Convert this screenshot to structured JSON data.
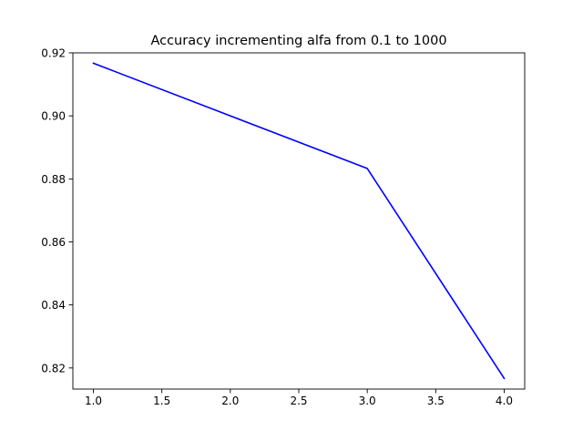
{
  "chart_data": {
    "type": "line",
    "title": "Accuracy incrementing alfa from 0.1 to 1000",
    "xlabel": "",
    "ylabel": "",
    "x": [
      1.0,
      3.0,
      4.0
    ],
    "series": [
      {
        "values": [
          0.9167,
          0.8833,
          0.8167
        ],
        "color": "#0000ff"
      }
    ],
    "xlim": [
      0.85,
      4.15
    ],
    "ylim": [
      0.8133,
      0.92
    ],
    "xticks": [
      1.0,
      1.5,
      2.0,
      2.5,
      3.0,
      3.5,
      4.0
    ],
    "xtick_labels": [
      "1.0",
      "1.5",
      "2.0",
      "2.5",
      "3.0",
      "3.5",
      "4.0"
    ],
    "yticks": [
      0.82,
      0.84,
      0.86,
      0.88,
      0.9,
      0.92
    ],
    "ytick_labels": [
      "0.82",
      "0.84",
      "0.86",
      "0.88",
      "0.90",
      "0.92"
    ],
    "grid": false,
    "legend": "none"
  }
}
